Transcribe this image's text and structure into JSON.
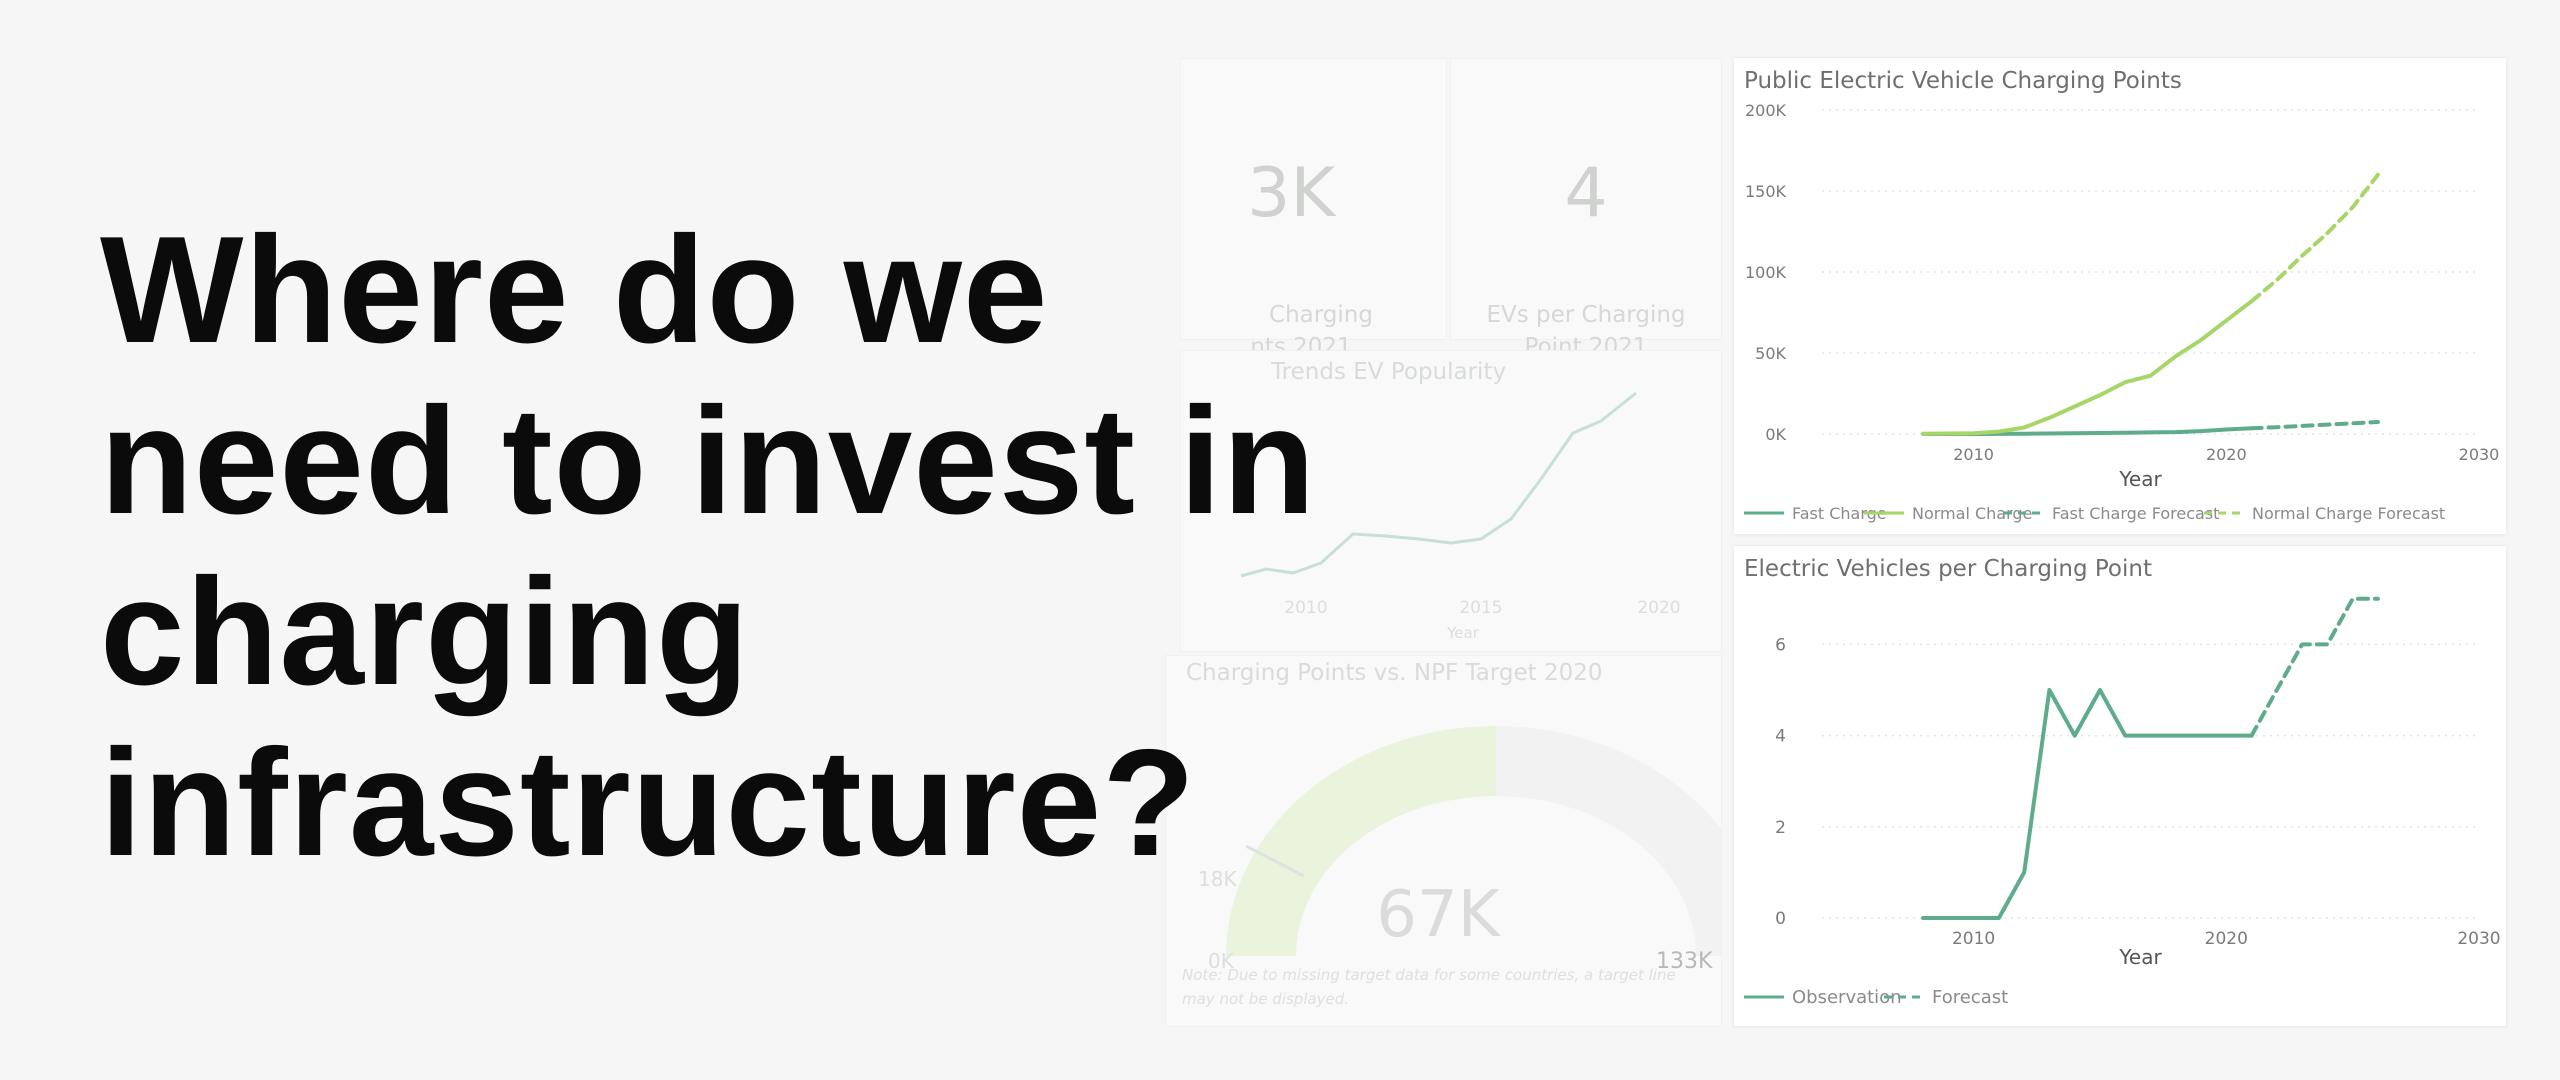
{
  "headline": {
    "lines": [
      "Where do we",
      "need to invest in",
      "charging",
      "infrastructure?"
    ]
  },
  "background_dashboard": {
    "kpi_1": {
      "value": "3K",
      "label_line1": "Charging",
      "label_line2": "nts 2021"
    },
    "kpi_2": {
      "value": "4",
      "label_line1": "EVs per Charging",
      "label_line2": "Point 2021"
    },
    "trends": {
      "title": "Trends EV Popularity",
      "xlabel": "Year",
      "ticks": [
        "2010",
        "2015",
        "2020"
      ]
    },
    "gauge": {
      "title": "Charging Points vs. NPF Target 2020",
      "value": "67K",
      "min": "0K",
      "max": "133K",
      "target": "18K"
    },
    "note": "Note: Due to missing target data for some countries, a target line may not be displayed."
  },
  "chart_data": [
    {
      "type": "line",
      "title": "Public Electric Vehicle Charging Points",
      "xlabel": "Year",
      "ylabel": "",
      "xlim": [
        2004,
        2030
      ],
      "ylim": [
        0,
        200000
      ],
      "y_ticks": [
        "0K",
        "50K",
        "100K",
        "150K",
        "200K"
      ],
      "x_ticks": [
        "2010",
        "2020",
        "2030"
      ],
      "grid": true,
      "legend": "bottom",
      "series": [
        {
          "name": "Fast Charge",
          "color": "#5eac8b",
          "style": "solid",
          "x": [
            2008,
            2010,
            2012,
            2014,
            2016,
            2018,
            2019,
            2020,
            2021
          ],
          "y": [
            0,
            0,
            200,
            500,
            800,
            1200,
            1800,
            2800,
            3500
          ]
        },
        {
          "name": "Normal Charge",
          "color": "#a6d568",
          "style": "solid",
          "x": [
            2008,
            2010,
            2011,
            2012,
            2013,
            2014,
            2015,
            2016,
            2017,
            2018,
            2019,
            2020,
            2021
          ],
          "y": [
            100,
            500,
            1500,
            4000,
            10000,
            17000,
            24000,
            32000,
            36000,
            48000,
            58000,
            70000,
            82000
          ]
        },
        {
          "name": "Fast Charge Forecast",
          "color": "#5eac8b",
          "style": "dashed",
          "x": [
            2021,
            2022,
            2023,
            2024,
            2025,
            2026
          ],
          "y": [
            3500,
            4200,
            5000,
            5800,
            6600,
            7400
          ]
        },
        {
          "name": "Normal Charge Forecast",
          "color": "#a6d568",
          "style": "dashed",
          "x": [
            2021,
            2022,
            2023,
            2024,
            2025,
            2026
          ],
          "y": [
            82000,
            95000,
            110000,
            124000,
            140000,
            160000
          ]
        }
      ]
    },
    {
      "type": "line",
      "title": "Electric Vehicles per Charging Point",
      "xlabel": "Year",
      "ylabel": "",
      "xlim": [
        2004,
        2030
      ],
      "ylim": [
        0,
        7.5
      ],
      "y_ticks": [
        "0",
        "2",
        "4",
        "6"
      ],
      "x_ticks": [
        "2010",
        "2020",
        "2030"
      ],
      "grid": true,
      "legend": "bottom",
      "series": [
        {
          "name": "Observation",
          "color": "#5eac8b",
          "style": "solid",
          "x": [
            2008,
            2009,
            2010,
            2011,
            2012,
            2013,
            2014,
            2015,
            2016,
            2017,
            2018,
            2019,
            2020,
            2021
          ],
          "y": [
            0,
            0,
            0,
            0,
            1,
            5,
            4,
            5,
            4,
            4,
            4,
            4,
            4,
            4
          ]
        },
        {
          "name": "Forecast",
          "color": "#5eac8b",
          "style": "dashed",
          "x": [
            2021,
            2022,
            2023,
            2024,
            2025,
            2026
          ],
          "y": [
            4,
            5,
            6,
            6,
            7,
            7
          ]
        }
      ]
    }
  ]
}
